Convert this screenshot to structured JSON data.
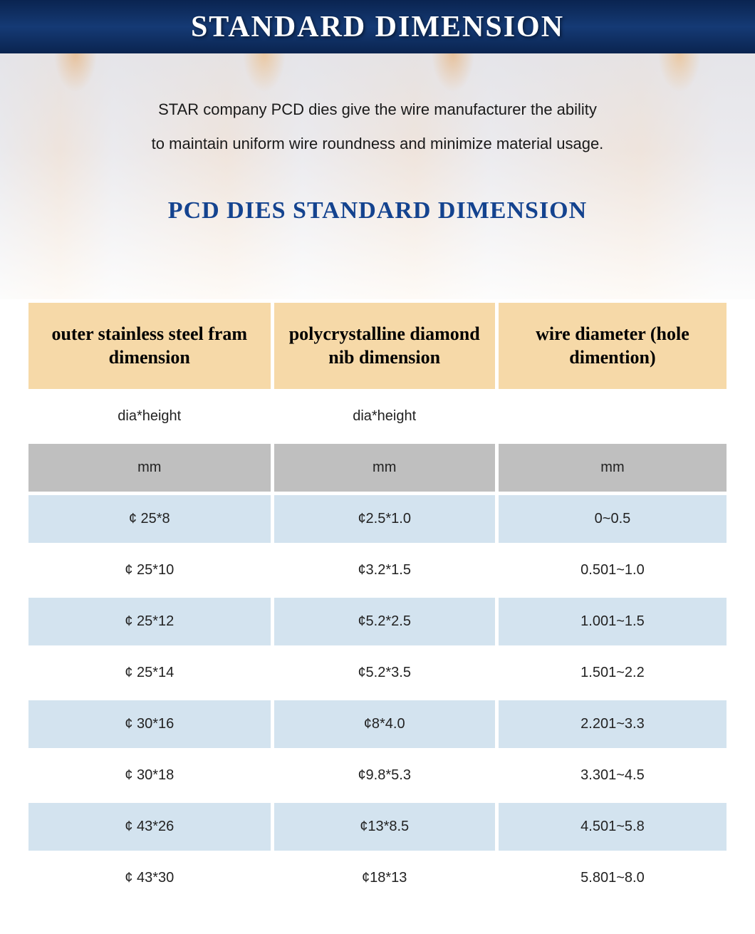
{
  "banner": {
    "title": "STANDARD DIMENSION"
  },
  "intro": {
    "line1": "STAR company PCD dies give the wire manufacturer the ability",
    "line2": "to maintain uniform wire roundness and minimize material usage."
  },
  "subtitle": "PCD DIES STANDARD DIMENSION",
  "table": {
    "headers": {
      "c1": "outer stainless steel fram dimension",
      "c2": "polycrystalline diamond nib dimension",
      "c3": "wire diameter (hole dimention)"
    },
    "subheaders": {
      "c1": "dia*height",
      "c2": "dia*height",
      "c3": ""
    },
    "units": {
      "c1": "mm",
      "c2": "mm",
      "c3": "mm"
    },
    "rows": [
      {
        "c1": "¢ 25*8",
        "c2": "¢2.5*1.0",
        "c3": "0~0.5"
      },
      {
        "c1": "¢ 25*10",
        "c2": "¢3.2*1.5",
        "c3": "0.501~1.0"
      },
      {
        "c1": "¢ 25*12",
        "c2": "¢5.2*2.5",
        "c3": "1.001~1.5"
      },
      {
        "c1": "¢ 25*14",
        "c2": "¢5.2*3.5",
        "c3": "1.501~2.2"
      },
      {
        "c1": "¢ 30*16",
        "c2": "¢8*4.0",
        "c3": "2.201~3.3"
      },
      {
        "c1": "¢ 30*18",
        "c2": "¢9.8*5.3",
        "c3": "3.301~4.5"
      },
      {
        "c1": "¢ 43*26",
        "c2": "¢13*8.5",
        "c3": "4.501~5.8"
      },
      {
        "c1": "¢ 43*30",
        "c2": "¢18*13",
        "c3": "5.801~8.0"
      }
    ],
    "colors": {
      "header_bg": "#f6d9a8",
      "unit_bg": "#bfbfbf",
      "alt_bg": "#d3e3ef",
      "row_bg": "#ffffff",
      "banner_bg": "#153a75",
      "subtitle_color": "#14438f"
    }
  }
}
